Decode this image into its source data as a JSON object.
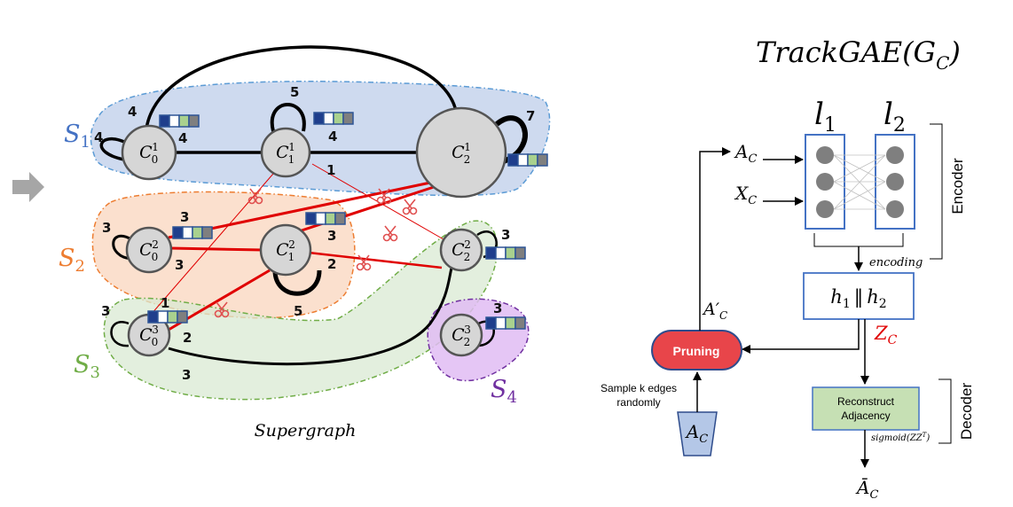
{
  "title": "TrackGAE(G",
  "title_sub": "C",
  "title_close": ")",
  "supergraph_label": "Supergraph",
  "subgraphs": [
    {
      "main": "S",
      "sub": "1",
      "color": "#4472c4"
    },
    {
      "main": "S",
      "sub": "2",
      "color": "#ed7d31"
    },
    {
      "main": "S",
      "sub": "3",
      "color": "#70ad47"
    },
    {
      "main": "S",
      "sub": "4",
      "color": "#7030a0"
    }
  ],
  "nodes": [
    {
      "main": "C",
      "sub": "0",
      "sup": "1"
    },
    {
      "main": "C",
      "sub": "1",
      "sup": "1"
    },
    {
      "main": "C",
      "sub": "2",
      "sup": "1"
    },
    {
      "main": "C",
      "sub": "0",
      "sup": "2"
    },
    {
      "main": "C",
      "sub": "1",
      "sup": "2"
    },
    {
      "main": "C",
      "sub": "2",
      "sup": "2"
    },
    {
      "main": "C",
      "sub": "0",
      "sup": "3"
    },
    {
      "main": "C",
      "sub": "2",
      "sup": "3"
    }
  ],
  "edge_weights": [
    "4",
    "4",
    "4",
    "5",
    "4",
    "7",
    "1",
    "3",
    "3",
    "3",
    "3",
    "2",
    "5",
    "3",
    "1",
    "3",
    "2",
    "3",
    "3"
  ],
  "feature_colors": [
    "#1f3e8c",
    "#ffffff",
    "#a9d18e",
    "#7f7f7f"
  ],
  "encoder": {
    "layer1": "l",
    "layer1_sub": "1",
    "layer2": "l",
    "layer2_sub": "2",
    "input_a": "A",
    "input_a_sub": "C",
    "input_x": "X",
    "input_x_sub": "C",
    "encoding_label": "encoding",
    "side_label": "Encoder",
    "concat_h1": "h",
    "concat_h1_sub": "1",
    "concat_sep": "‖",
    "concat_h2": "h",
    "concat_h2_sub": "2",
    "z_label": "Z",
    "z_sub": "C"
  },
  "pruning": {
    "label": "Pruning",
    "output_main": "A′",
    "output_sub": "C",
    "sample_line1": "Sample k edges",
    "sample_line2": "randomly",
    "input_main": "A",
    "input_sub": "C"
  },
  "decoder": {
    "box_line1": "Reconstruct",
    "box_line2": "Adjacency",
    "fn": "sigmoid(ZZ",
    "fn_sup": "T",
    "fn_close": ")",
    "side_label": "Decoder",
    "output_main": "Ā",
    "output_sub": "C"
  },
  "colors": {
    "pruning_fill": "#e8454a",
    "decoder_fill": "#c6e0b4",
    "ac_block_fill": "#b4c7e7",
    "red_edge": "#e00000",
    "z_label": "#e00000"
  }
}
